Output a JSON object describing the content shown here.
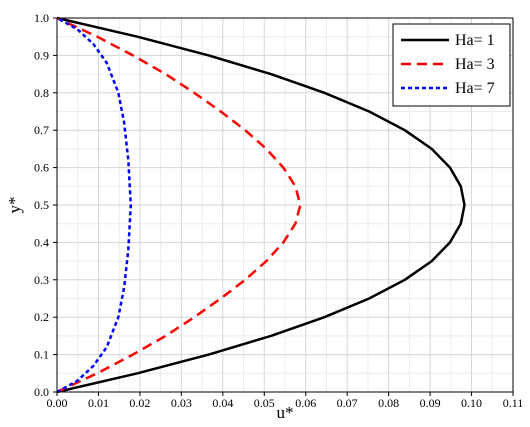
{
  "chart_data": {
    "type": "line",
    "title": "",
    "xlabel": "u*",
    "ylabel": "y*",
    "xlim": [
      0,
      0.11
    ],
    "ylim": [
      0,
      1.0
    ],
    "x_ticks": [
      "0.00",
      "0.01",
      "0.02",
      "0.03",
      "0.04",
      "0.05",
      "0.06",
      "0.07",
      "0.08",
      "0.09",
      "0.10",
      "0.11"
    ],
    "y_ticks": [
      "0.0",
      "0.1",
      "0.2",
      "0.3",
      "0.4",
      "0.5",
      "0.6",
      "0.7",
      "0.8",
      "0.9",
      "1.0"
    ],
    "grid": true,
    "minor_grid": true,
    "legend_position": "top-right",
    "series": [
      {
        "name": "Ha= 1",
        "color": "#000000",
        "style": "solid",
        "points": [
          [
            0.0,
            0.0
          ],
          [
            0.0194,
            0.05
          ],
          [
            0.0366,
            0.1
          ],
          [
            0.0516,
            0.15
          ],
          [
            0.0645,
            0.2
          ],
          [
            0.0753,
            0.25
          ],
          [
            0.0839,
            0.3
          ],
          [
            0.0904,
            0.35
          ],
          [
            0.0948,
            0.4
          ],
          [
            0.0974,
            0.45
          ],
          [
            0.0983,
            0.5
          ],
          [
            0.0974,
            0.55
          ],
          [
            0.0948,
            0.6
          ],
          [
            0.0904,
            0.65
          ],
          [
            0.0839,
            0.7
          ],
          [
            0.0753,
            0.75
          ],
          [
            0.0645,
            0.8
          ],
          [
            0.0516,
            0.85
          ],
          [
            0.0366,
            0.9
          ],
          [
            0.0194,
            0.95
          ],
          [
            0.0,
            1.0
          ]
        ]
      },
      {
        "name": "Ha= 3",
        "color": "#ff0000",
        "style": "dashed",
        "points": [
          [
            0.0,
            0.0
          ],
          [
            0.0097,
            0.05
          ],
          [
            0.0183,
            0.1
          ],
          [
            0.0262,
            0.15
          ],
          [
            0.0331,
            0.2
          ],
          [
            0.0395,
            0.25
          ],
          [
            0.0454,
            0.3
          ],
          [
            0.0505,
            0.35
          ],
          [
            0.0546,
            0.4
          ],
          [
            0.0575,
            0.45
          ],
          [
            0.0587,
            0.5
          ],
          [
            0.0575,
            0.55
          ],
          [
            0.0546,
            0.6
          ],
          [
            0.0505,
            0.65
          ],
          [
            0.0454,
            0.7
          ],
          [
            0.0395,
            0.75
          ],
          [
            0.0331,
            0.8
          ],
          [
            0.0262,
            0.85
          ],
          [
            0.0183,
            0.9
          ],
          [
            0.0097,
            0.95
          ],
          [
            0.0,
            1.0
          ]
        ]
      },
      {
        "name": "Ha= 7",
        "color": "#0000ff",
        "style": "dotted",
        "points": [
          [
            0.0,
            0.0
          ],
          [
            0.0049,
            0.03
          ],
          [
            0.0088,
            0.07
          ],
          [
            0.012,
            0.12
          ],
          [
            0.0148,
            0.2
          ],
          [
            0.0162,
            0.28
          ],
          [
            0.0172,
            0.38
          ],
          [
            0.0178,
            0.5
          ],
          [
            0.0172,
            0.62
          ],
          [
            0.0162,
            0.72
          ],
          [
            0.0148,
            0.8
          ],
          [
            0.012,
            0.88
          ],
          [
            0.0088,
            0.93
          ],
          [
            0.0049,
            0.97
          ],
          [
            0.0,
            1.0
          ]
        ]
      }
    ]
  }
}
